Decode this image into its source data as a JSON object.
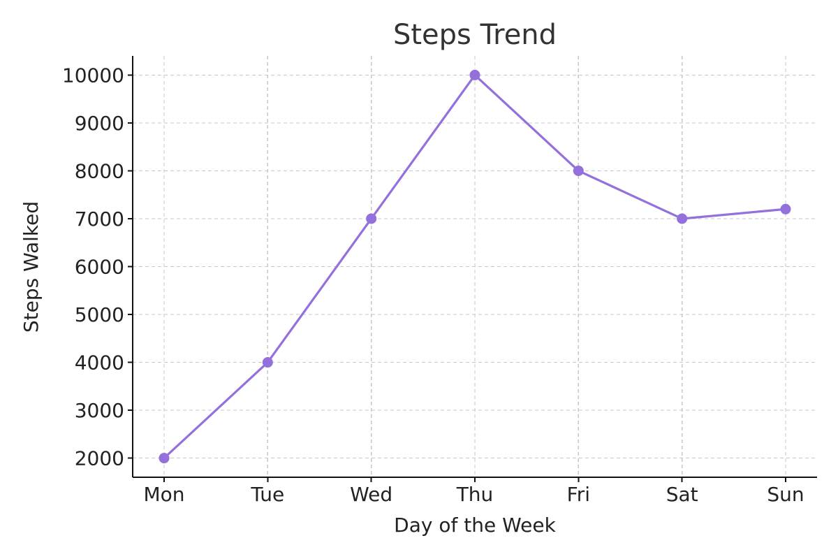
{
  "chart_data": {
    "type": "line",
    "title": "Steps Trend",
    "xlabel": "Day of the Week",
    "ylabel": "Steps Walked",
    "categories": [
      "Mon",
      "Tue",
      "Wed",
      "Thu",
      "Fri",
      "Sat",
      "Sun"
    ],
    "series": [
      {
        "values": [
          2000,
          4000,
          7000,
          10000,
          8000,
          7000,
          7200
        ],
        "color": "#9370db",
        "marker": "circle"
      }
    ],
    "y_ticks": [
      2000,
      3000,
      4000,
      5000,
      6000,
      7000,
      8000,
      9000,
      10000
    ],
    "ylim": [
      1600,
      10400
    ],
    "grid": true,
    "legend": "none"
  }
}
